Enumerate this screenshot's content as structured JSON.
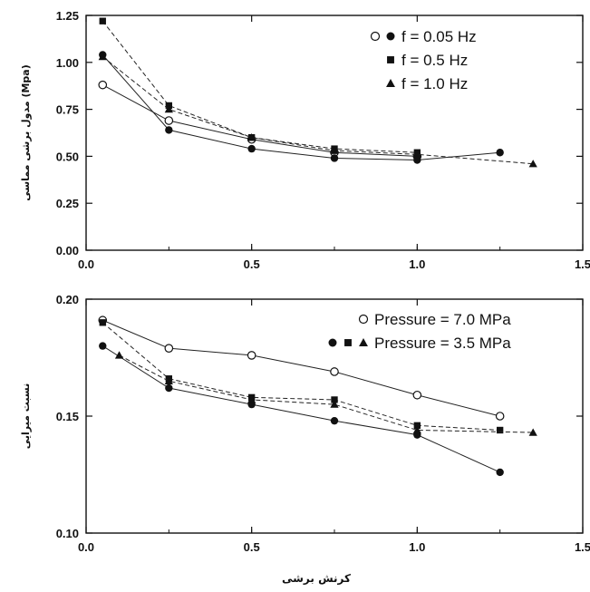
{
  "chart_data": [
    {
      "type": "line",
      "ylabel": "مدول برشی مماسی (Mpa)",
      "xlim": [
        0,
        1.5
      ],
      "ylim": [
        0,
        1.25
      ],
      "x_ticks": [
        "0.0",
        "0.5",
        "1.0",
        "1.5"
      ],
      "y_ticks": [
        "0.00",
        "0.25",
        "0.50",
        "0.75",
        "1.00",
        "1.25"
      ],
      "legend": [
        {
          "label": "f = 0.05 Hz",
          "markers": [
            "open-circle",
            "filled-circle"
          ]
        },
        {
          "label": "f = 0.5 Hz",
          "markers": [
            "filled-square"
          ]
        },
        {
          "label": "f = 1.0 Hz",
          "markers": [
            "filled-triangle"
          ]
        }
      ],
      "series": [
        {
          "marker": "open-circle",
          "dash": false,
          "x": [
            0.05,
            0.25,
            0.5,
            0.75,
            1.0
          ],
          "y": [
            0.88,
            0.69,
            0.59,
            0.52,
            0.5
          ]
        },
        {
          "marker": "filled-circle",
          "dash": false,
          "x": [
            0.05,
            0.25,
            0.5,
            0.75,
            1.0,
            1.25
          ],
          "y": [
            1.04,
            0.64,
            0.54,
            0.49,
            0.48,
            0.52
          ]
        },
        {
          "marker": "filled-square",
          "dash": true,
          "x": [
            0.05,
            0.25,
            0.5,
            0.75,
            1.0
          ],
          "y": [
            1.22,
            0.77,
            0.6,
            0.54,
            0.52
          ]
        },
        {
          "marker": "filled-triangle",
          "dash": true,
          "x": [
            0.05,
            0.25,
            0.5,
            0.75,
            1.0,
            1.35
          ],
          "y": [
            1.03,
            0.75,
            0.6,
            0.53,
            0.51,
            0.46
          ]
        }
      ]
    },
    {
      "type": "line",
      "ylabel": "نسبت میرایی",
      "xlabel": "کرنش برشی",
      "xlim": [
        0,
        1.5
      ],
      "ylim": [
        0.1,
        0.2
      ],
      "x_ticks": [
        "0.0",
        "0.5",
        "1.0",
        "1.5"
      ],
      "y_ticks": [
        "0.10",
        "0.15",
        "0.20"
      ],
      "legend": [
        {
          "label": "Pressure = 7.0 MPa",
          "markers": [
            "open-circle"
          ]
        },
        {
          "label": "Pressure = 3.5 MPa",
          "markers": [
            "filled-circle",
            "filled-square",
            "filled-triangle"
          ]
        }
      ],
      "series": [
        {
          "marker": "open-circle",
          "dash": false,
          "x": [
            0.05,
            0.25,
            0.5,
            0.75,
            1.0,
            1.25
          ],
          "y": [
            0.191,
            0.179,
            0.176,
            0.169,
            0.159,
            0.15
          ]
        },
        {
          "marker": "filled-circle",
          "dash": false,
          "x": [
            0.05,
            0.25,
            0.5,
            0.75,
            1.0,
            1.25
          ],
          "y": [
            0.18,
            0.162,
            0.155,
            0.148,
            0.142,
            0.126
          ]
        },
        {
          "marker": "filled-square",
          "dash": true,
          "x": [
            0.05,
            0.25,
            0.5,
            0.75,
            1.0,
            1.25
          ],
          "y": [
            0.19,
            0.166,
            0.158,
            0.157,
            0.146,
            0.144
          ]
        },
        {
          "marker": "filled-triangle",
          "dash": true,
          "x": [
            0.1,
            0.25,
            0.5,
            0.75,
            1.0,
            1.35
          ],
          "y": [
            0.176,
            0.165,
            0.157,
            0.155,
            0.144,
            0.143
          ]
        }
      ]
    }
  ]
}
